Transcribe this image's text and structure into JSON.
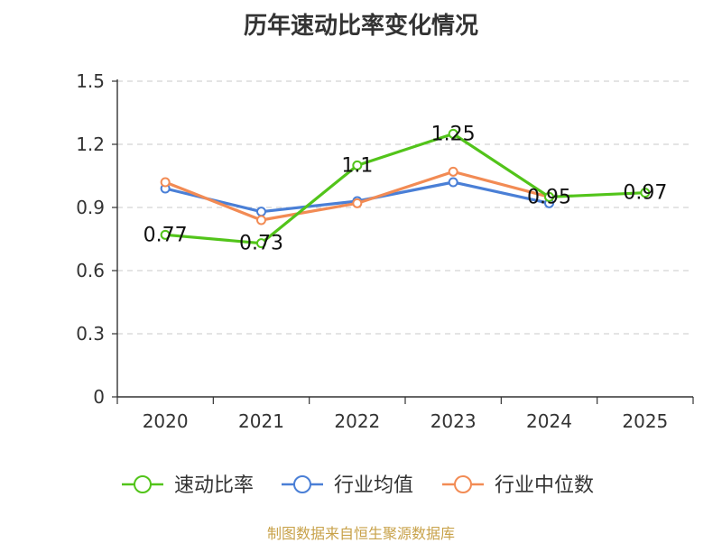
{
  "chart_data": {
    "type": "line",
    "title": "历年速动比率变化情况",
    "categories": [
      "2020",
      "2021",
      "2022",
      "2023",
      "2024",
      "2025"
    ],
    "ylim": [
      0,
      1.5
    ],
    "yticks": [
      0,
      0.3,
      0.6,
      0.9,
      1.2,
      1.5
    ],
    "ytick_labels": [
      "0",
      "0.3",
      "0.6",
      "0.9",
      "1.2",
      "1.5"
    ],
    "grid": true,
    "legend_position": "bottom",
    "series": [
      {
        "name": "速动比率",
        "color": "#52c41a",
        "values": [
          0.77,
          0.73,
          1.1,
          1.25,
          0.95,
          0.97
        ],
        "labels": [
          "0.77",
          "0.73",
          "1.1",
          "1.25",
          "0.95",
          "0.97"
        ]
      },
      {
        "name": "行业均值",
        "color": "#4a7fd6",
        "values": [
          0.99,
          0.88,
          0.93,
          1.02,
          0.92,
          null
        ]
      },
      {
        "name": "行业中位数",
        "color": "#f28b54",
        "values": [
          1.02,
          0.84,
          0.92,
          1.07,
          0.95,
          null
        ]
      }
    ]
  },
  "footer": {
    "source": "制图数据来自恒生聚源数据库"
  }
}
